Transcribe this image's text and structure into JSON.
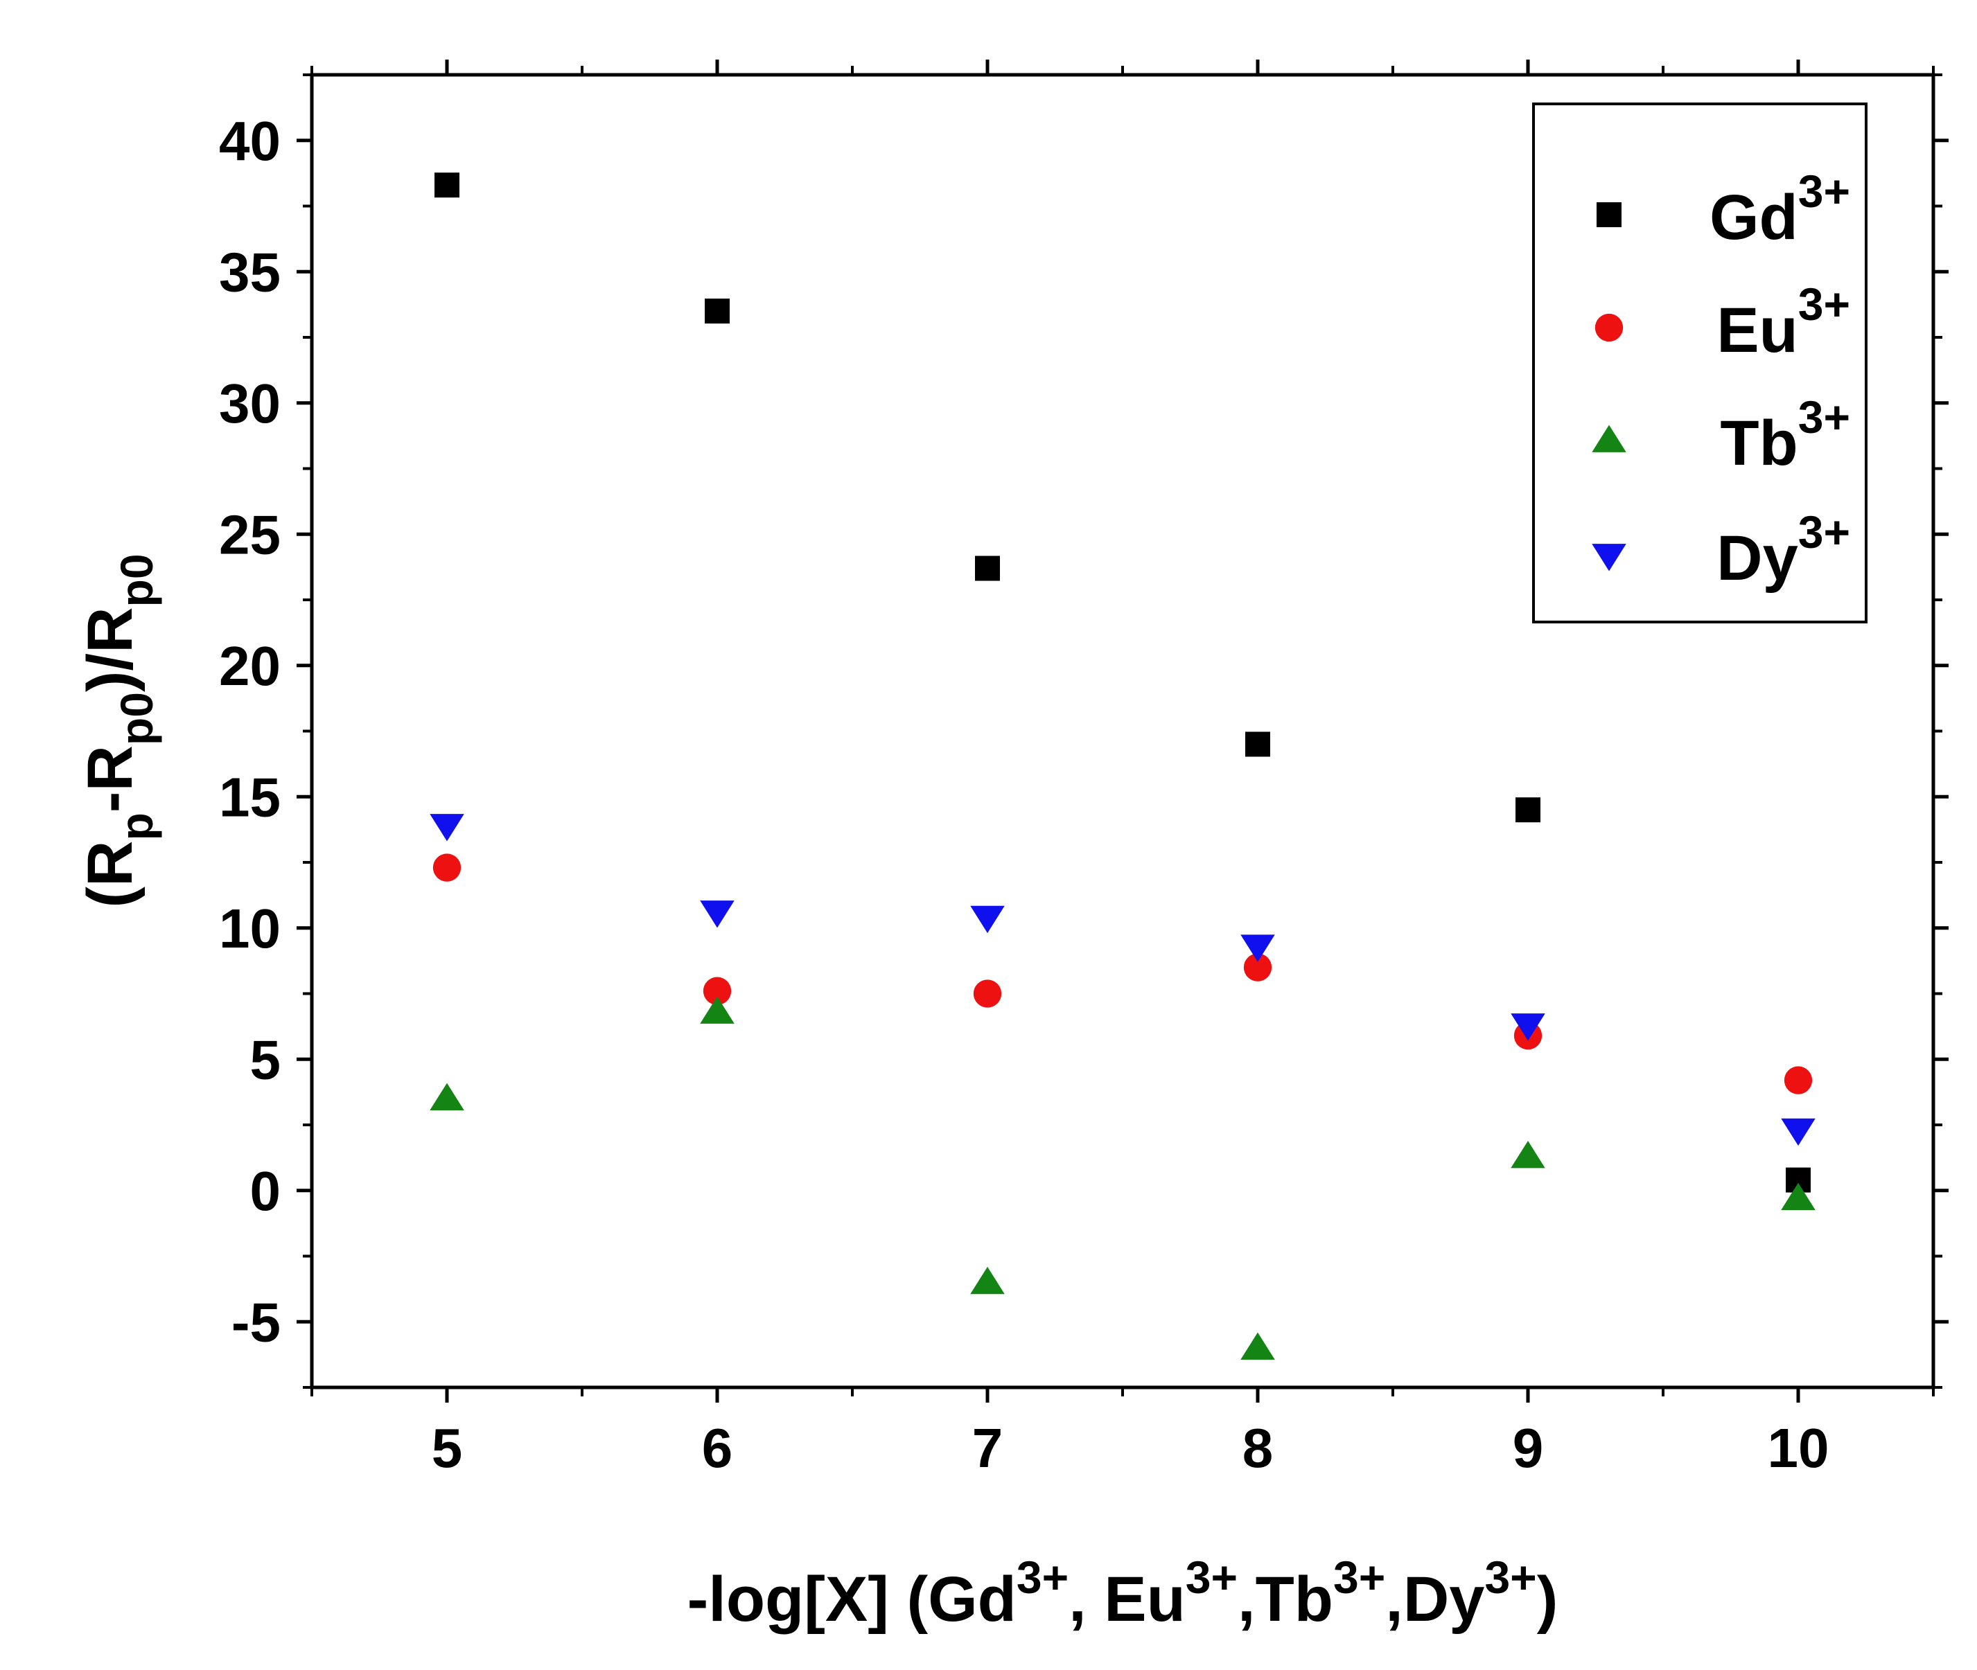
{
  "chart_data": {
    "type": "scatter",
    "xlabel": {
      "main": "-log[X]",
      "items": [
        {
          "base": "Gd",
          "sup": "3+",
          "sep": ", "
        },
        {
          "base": "Eu",
          "sup": "3+",
          "sep": ","
        },
        {
          "base": "Tb",
          "sup": "3+",
          "sep": ","
        },
        {
          "base": "Dy",
          "sup": "3+",
          "sep": ""
        }
      ]
    },
    "ylabel": {
      "parts": [
        {
          "text": "(R",
          "style": "normal"
        },
        {
          "text": "p",
          "style": "sub"
        },
        {
          "text": "-R",
          "style": "normal"
        },
        {
          "text": "p0",
          "style": "sub"
        },
        {
          "text": ")/R",
          "style": "normal"
        },
        {
          "text": "p0",
          "style": "sub"
        }
      ]
    },
    "xlim": [
      4.5,
      10.5
    ],
    "ylim": [
      -7.5,
      42.5
    ],
    "x_ticks": [
      5,
      6,
      7,
      8,
      9,
      10
    ],
    "y_ticks": [
      -5,
      0,
      5,
      10,
      15,
      20,
      25,
      30,
      35,
      40
    ],
    "grid": false,
    "legend_position": "top-right",
    "series": [
      {
        "name": "Gd",
        "name_sup": "3+",
        "marker": "square",
        "color": "#000000",
        "x": [
          5,
          6,
          7,
          8,
          9,
          10
        ],
        "y": [
          38.3,
          33.5,
          23.7,
          17.0,
          14.5,
          0.4
        ]
      },
      {
        "name": "Eu",
        "name_sup": "3+",
        "marker": "circle",
        "color": "#ee1111",
        "x": [
          5,
          6,
          7,
          8,
          9,
          10
        ],
        "y": [
          12.3,
          7.6,
          7.5,
          8.5,
          5.9,
          4.2
        ]
      },
      {
        "name": "Tb",
        "name_sup": "3+",
        "marker": "triangle-up",
        "color": "#148414",
        "x": [
          5,
          6,
          7,
          8,
          9,
          10
        ],
        "y": [
          3.5,
          6.8,
          -3.5,
          -6.0,
          1.3,
          -0.3
        ]
      },
      {
        "name": "Dy",
        "name_sup": "3+",
        "marker": "triangle-down",
        "color": "#1010ee",
        "x": [
          5,
          6,
          7,
          8,
          9,
          10
        ],
        "y": [
          13.9,
          10.6,
          10.4,
          9.3,
          6.3,
          2.3
        ]
      }
    ]
  }
}
